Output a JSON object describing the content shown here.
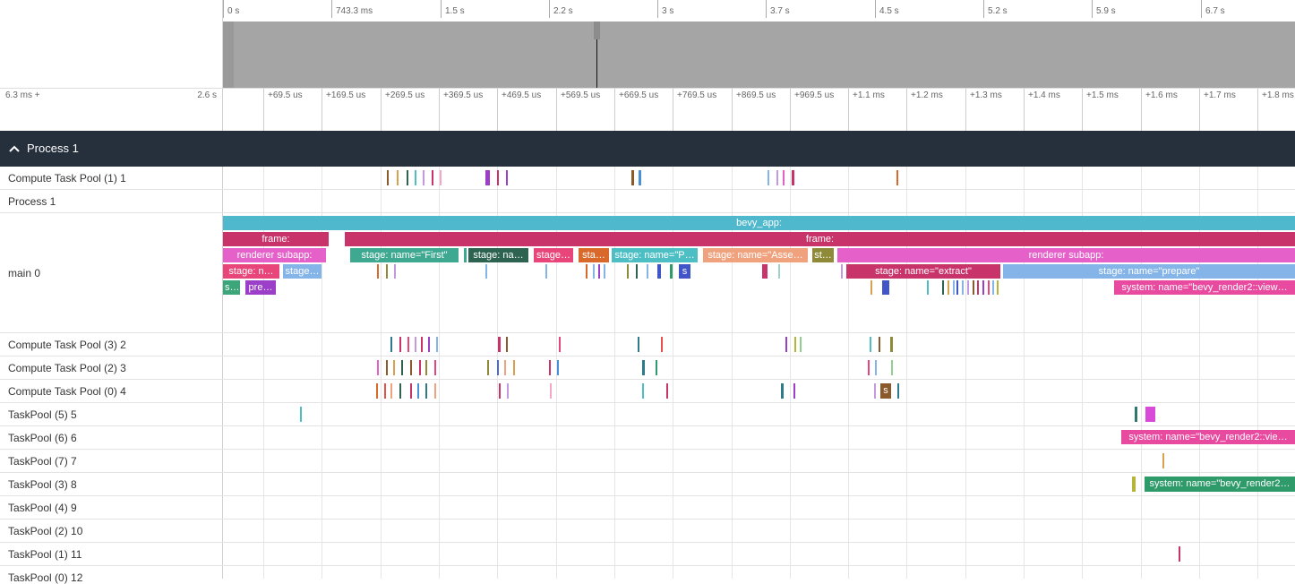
{
  "overview": {
    "axis_ticks": [
      "0 s",
      "743.3 ms",
      "1.5 s",
      "2.2 s",
      "3 s",
      "3.7 s",
      "4.5 s",
      "5.2 s",
      "5.9 s",
      "6.7 s"
    ]
  },
  "detail": {
    "range_start": "6.3 ms +",
    "range_end": "2.6 s",
    "ticks": [
      "+69.5 us",
      "+169.5 us",
      "+269.5 us",
      "+369.5 us",
      "+469.5 us",
      "+569.5 us",
      "+669.5 us",
      "+769.5 us",
      "+869.5 us",
      "+969.5 us",
      "+1.1 ms",
      "+1.2 ms",
      "+1.3 ms",
      "+1.4 ms",
      "+1.5 ms",
      "+1.6 ms",
      "+1.7 ms",
      "+1.8 ms"
    ]
  },
  "process": {
    "title": "Process 1",
    "chevron": "chevron-up-icon"
  },
  "tracks": [
    "Compute Task Pool (1) 1",
    "Process 1",
    "main 0",
    "Compute Task Pool (3) 2",
    "Compute Task Pool (2) 3",
    "Compute Task Pool (0) 4",
    "TaskPool (5) 5",
    "TaskPool (6) 6",
    "TaskPool (7) 7",
    "TaskPool (3) 8",
    "TaskPool (4) 9",
    "TaskPool (2) 10",
    "TaskPool (1) 11",
    "TaskPool (0) 12"
  ],
  "slices": {
    "bevy_app": "bevy_app:",
    "frame_1": "frame:",
    "frame_2": "frame:",
    "renderer_1": "renderer subapp:",
    "renderer_2": "renderer subapp:",
    "stage_first": "stage: name=\"First\"",
    "stage_na": "stage: na…",
    "stage_dots": "stage…",
    "stage_sta": "sta…",
    "stage_p": "stage: name=\"P…",
    "stage_asse": "stage: name=\"Asse…",
    "stage_st": "st…",
    "stage_n": "stage: n…",
    "stage_short": "stage…",
    "stage_extract": "stage: name=\"extract\"",
    "stage_prepare": "stage: name=\"prepare\"",
    "s_1": "s…",
    "pre": "pre…",
    "s_box": "s",
    "sys_view_main": "system: name=\"bevy_render2::view…",
    "s_box2": "s",
    "sys_view_tp6": "system: name=\"bevy_render2::vie…",
    "sys_tp3": "system: name=\"bevy_render2…"
  },
  "colors": {
    "header_bg": "#262f3c",
    "bevy_app": "#4fb8cc",
    "frame": "#c8336a",
    "renderer": "#e561c9",
    "teal": "#3fa890",
    "darkgreen": "#2d6350",
    "pink": "#e8467a",
    "orange": "#d9692b",
    "cyan": "#4dbfc4",
    "salmon": "#f0a27f",
    "olive": "#8e8a38",
    "lightblue": "#84b4e8",
    "green": "#3da57a",
    "purple": "#9b3fc8",
    "magenta": "#e84a9f",
    "brown": "#8b5a2b",
    "blue": "#4055c8",
    "green2": "#2f9a6a"
  }
}
